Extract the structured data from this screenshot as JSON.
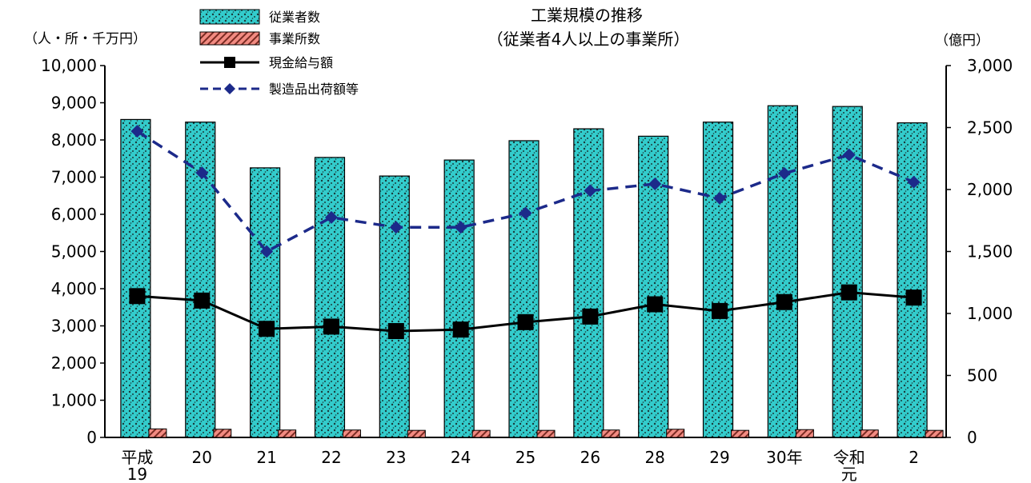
{
  "chart_data": {
    "type": "bar",
    "title": "工業規模の推移",
    "subtitle": "（従業者4人以上の事業所）",
    "left_unit": "（人・所・千万円）",
    "right_unit": "（億円）",
    "categories": [
      "平成19",
      "20",
      "21",
      "22",
      "23",
      "24",
      "25",
      "26",
      "28",
      "29",
      "30年",
      "令和元",
      "2"
    ],
    "category_lines": [
      [
        "平成",
        "19"
      ],
      [
        "20"
      ],
      [
        "21"
      ],
      [
        "22"
      ],
      [
        "23"
      ],
      [
        "24"
      ],
      [
        "25"
      ],
      [
        "26"
      ],
      [
        "28"
      ],
      [
        "29"
      ],
      [
        "30年"
      ],
      [
        "令和",
        "元"
      ],
      [
        "2"
      ]
    ],
    "ylim_left": [
      0,
      10000
    ],
    "ylim_right": [
      0,
      3000
    ],
    "yticks_left": [
      "0",
      "1,000",
      "2,000",
      "3,000",
      "4,000",
      "5,000",
      "6,000",
      "7,000",
      "8,000",
      "9,000",
      "10,000"
    ],
    "yticks_right": [
      "0",
      "500",
      "1,000",
      "1,500",
      "2,000",
      "2,500",
      "3,000"
    ],
    "series": [
      {
        "name": "従業者数",
        "kind": "bar",
        "axis": "left",
        "color": "#33CCCC",
        "values": [
          8550,
          8480,
          7250,
          7530,
          7030,
          7460,
          7980,
          8300,
          8100,
          8480,
          8920,
          8900,
          8460
        ]
      },
      {
        "name": "事業所数",
        "kind": "bar",
        "axis": "left",
        "color": "#F28B82",
        "values": [
          230,
          220,
          200,
          200,
          190,
          190,
          190,
          200,
          220,
          190,
          210,
          200,
          190
        ]
      },
      {
        "name": "現金給与額",
        "kind": "line",
        "axis": "left",
        "color": "#000000",
        "marker": "square",
        "values": [
          3800,
          3680,
          2920,
          2980,
          2860,
          2900,
          3100,
          3250,
          3580,
          3400,
          3640,
          3900,
          3760
        ]
      },
      {
        "name": "製造品出荷額等",
        "kind": "line",
        "axis": "right",
        "color": "#1C2A8A",
        "marker": "diamond",
        "dashed": true,
        "values": [
          2470,
          2135,
          1500,
          1775,
          1695,
          1695,
          1810,
          1990,
          2045,
          1930,
          2130,
          2280,
          2060
        ]
      }
    ]
  }
}
